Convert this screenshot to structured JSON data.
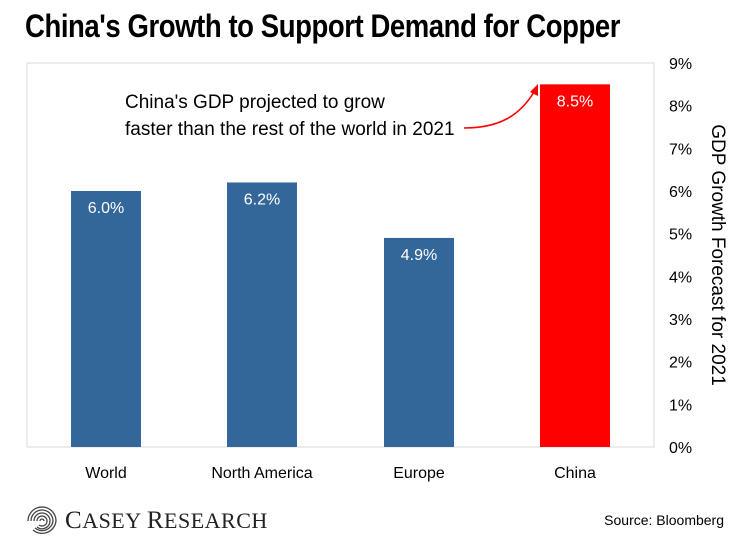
{
  "chart_data": {
    "type": "bar",
    "title": "China's Growth to Support Demand for Copper",
    "categories": [
      "World",
      "North America",
      "Europe",
      "China"
    ],
    "values": [
      6.0,
      6.2,
      4.9,
      8.5
    ],
    "data_labels": [
      "6.0%",
      "6.2%",
      "4.9%",
      "8.5%"
    ],
    "ylabel": "GDP Growth Forecast for 2021",
    "ylim": [
      0,
      9
    ],
    "yticks": [
      "0%",
      "1%",
      "2%",
      "3%",
      "4%",
      "5%",
      "6%",
      "7%",
      "8%",
      "9%"
    ],
    "y_axis_position": "right",
    "grid": false,
    "colors": {
      "default": "#336699",
      "highlight": "#ff0000",
      "plot_border": "#d9d9d9"
    },
    "highlight_index": 3,
    "annotation": {
      "lines": [
        "China's GDP projected to grow",
        "faster than the rest of the world in 2021"
      ],
      "arrow_target": "China"
    }
  },
  "footer": {
    "logo_text_first_initial": "C",
    "logo_text_first_rest": "ASEY",
    "logo_text_second_initial": "R",
    "logo_text_second_rest": "ESEARCH",
    "logo_icon": "spiral-swirl-icon",
    "source": "Source: Bloomberg"
  }
}
